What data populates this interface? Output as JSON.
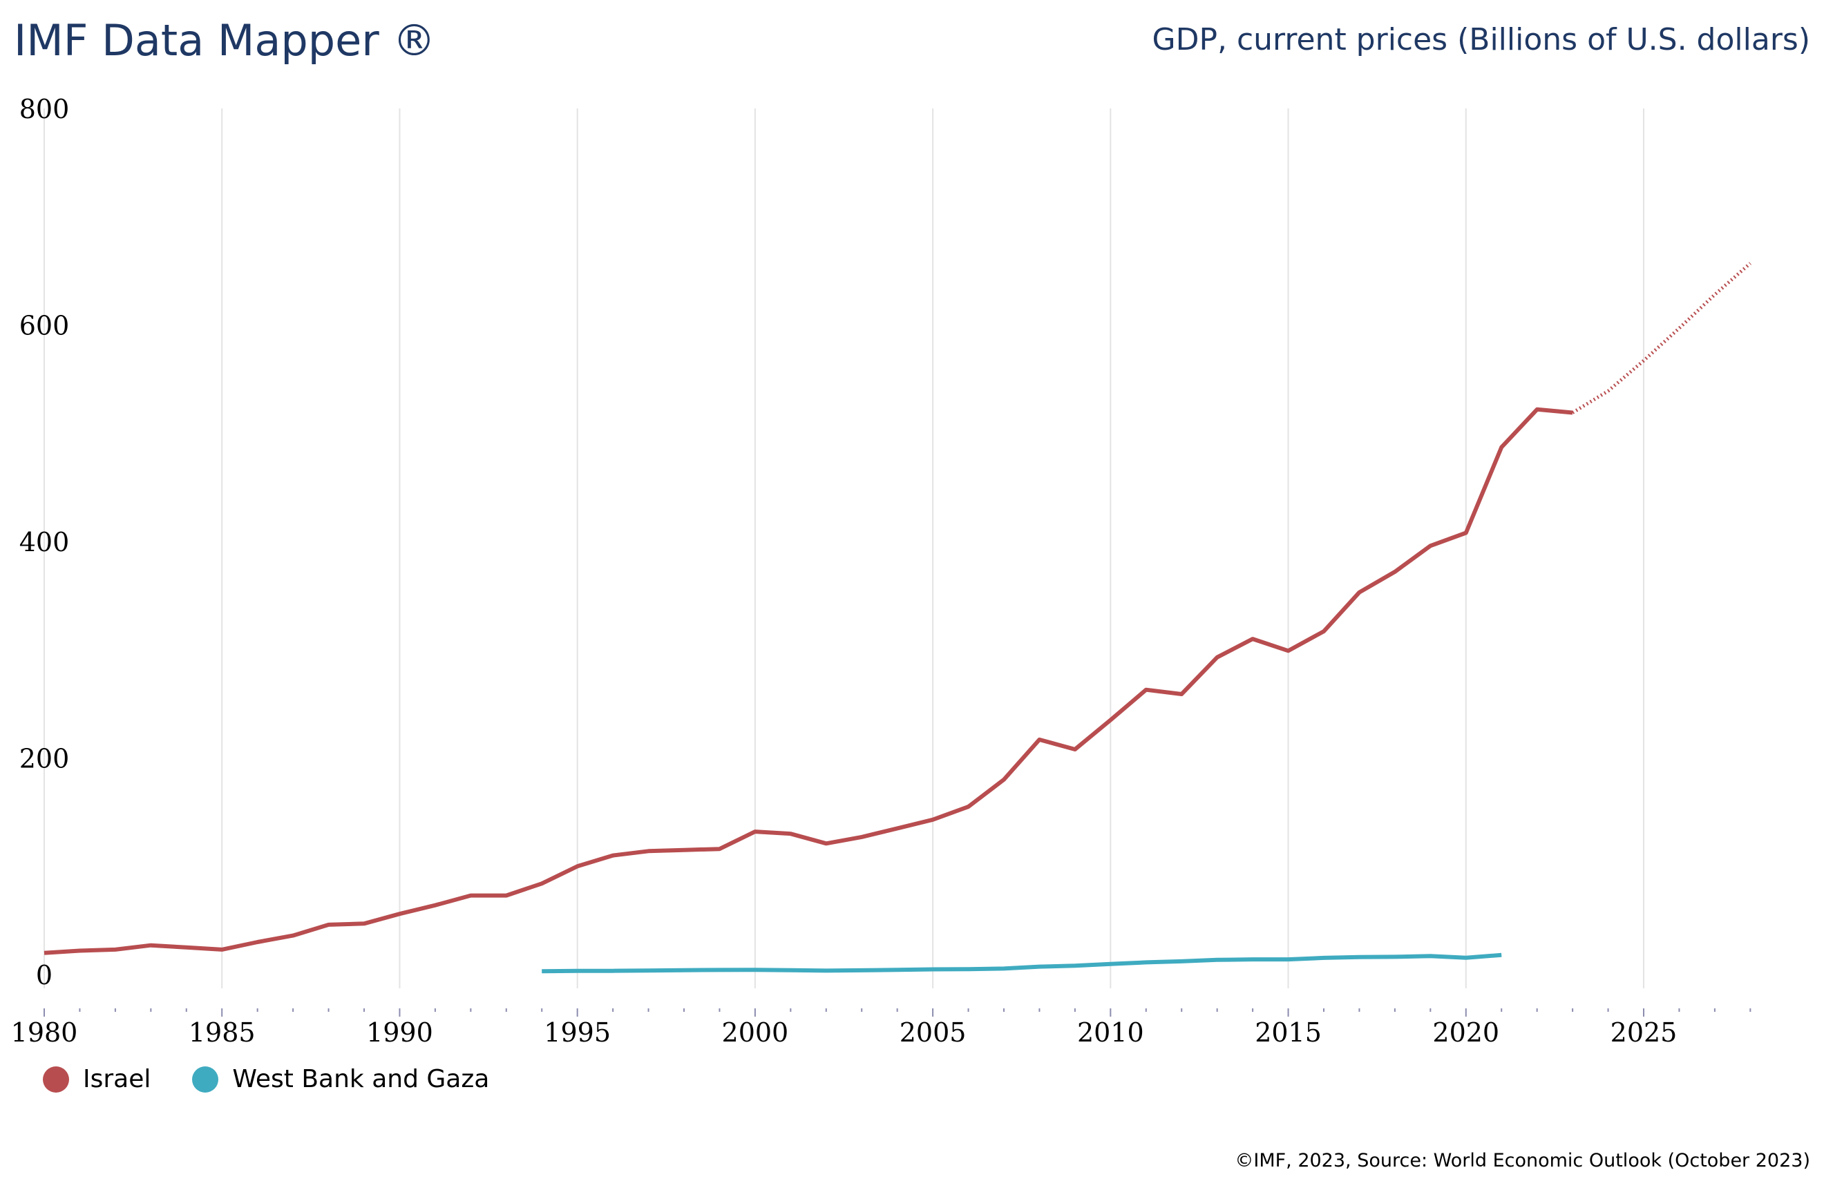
{
  "header": {
    "title": "IMF Data Mapper ®",
    "indicator": "GDP, current prices (Billions of U.S. dollars)"
  },
  "footer": "©IMF, 2023, Source: World Economic Outlook (October 2023)",
  "chart_data": {
    "type": "line",
    "title": "GDP, current prices (Billions of U.S. dollars)",
    "xlim": [
      1980,
      2028
    ],
    "ylim": [
      0,
      800
    ],
    "x_ticks": [
      "1980",
      "1985",
      "1990",
      "1995",
      "2000",
      "2005",
      "2010",
      "2015",
      "2020",
      "2025"
    ],
    "y_ticks": [
      "0",
      "200",
      "400",
      "600",
      "800"
    ],
    "grid": "vertical",
    "legend": "bottom-left",
    "projection_start": 2023,
    "series": [
      {
        "name": "Israel",
        "color": "#b84d4f",
        "x": [
          1980,
          1981,
          1982,
          1983,
          1984,
          1985,
          1986,
          1987,
          1988,
          1989,
          1990,
          1991,
          1992,
          1993,
          1994,
          1995,
          1996,
          1997,
          1998,
          1999,
          2000,
          2001,
          2002,
          2003,
          2004,
          2005,
          2006,
          2007,
          2008,
          2009,
          2010,
          2011,
          2012,
          2013,
          2014,
          2015,
          2016,
          2017,
          2018,
          2019,
          2020,
          2021,
          2022,
          2023,
          2024,
          2025,
          2026,
          2027,
          2028
        ],
        "values": [
          20,
          22,
          23,
          27,
          25,
          23,
          30,
          36,
          46,
          47,
          56,
          64,
          73,
          73,
          84,
          100,
          110,
          114,
          115,
          116,
          132,
          130,
          121,
          127,
          135,
          143,
          155,
          180,
          217,
          208,
          235,
          263,
          259,
          293,
          310,
          299,
          317,
          353,
          372,
          396,
          408,
          487,
          522,
          519,
          539,
          567,
          597,
          628,
          657
        ]
      },
      {
        "name": "West Bank and Gaza",
        "color": "#3fabc0",
        "x": [
          1994,
          1995,
          1996,
          1997,
          1998,
          1999,
          2000,
          2001,
          2002,
          2003,
          2004,
          2005,
          2006,
          2007,
          2008,
          2009,
          2010,
          2011,
          2012,
          2013,
          2014,
          2015,
          2016,
          2017,
          2018,
          2019,
          2020,
          2021
        ],
        "values": [
          3.0,
          3.3,
          3.4,
          3.7,
          4.0,
          4.2,
          4.3,
          4.0,
          3.6,
          3.9,
          4.3,
          4.8,
          5.0,
          5.5,
          7.3,
          8.1,
          9.7,
          11.2,
          12.2,
          13.5,
          13.99,
          13.97,
          15.4,
          16.1,
          16.3,
          17.1,
          15.5,
          18.0
        ]
      }
    ]
  }
}
